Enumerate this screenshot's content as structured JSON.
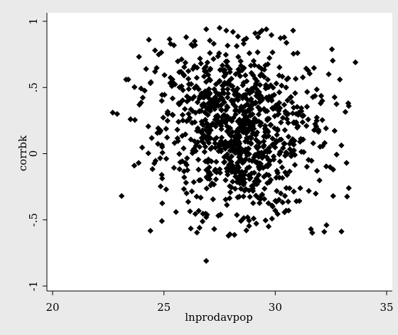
{
  "chart_data": {
    "type": "scatter",
    "title": "",
    "xlabel": "lnprodavpop",
    "ylabel": "corrbk",
    "xlim": [
      20,
      35
    ],
    "ylim": [
      -1,
      1
    ],
    "xticks": [
      "20",
      "25",
      "30",
      "35"
    ],
    "yticks": [
      "-1",
      "-.5",
      "0",
      ".5",
      "1"
    ],
    "xtick_values": [
      20,
      25,
      30,
      35
    ],
    "ytick_values": [
      -1,
      -0.5,
      0,
      0.5,
      1
    ],
    "grid": false,
    "marker": "diamond",
    "marker_color": "#000000",
    "series": [
      {
        "points": [
          [
            22.7,
            0.31
          ],
          [
            23.1,
            -0.32
          ],
          [
            23.3,
            0.56
          ],
          [
            23.4,
            0.56
          ],
          [
            23.5,
            0.26
          ],
          [
            23.9,
            0.37
          ],
          [
            24.2,
            0.64
          ],
          [
            24.6,
            0.62
          ],
          [
            24.6,
            0.78
          ],
          [
            24.9,
            -0.16
          ],
          [
            25.1,
            -0.27
          ],
          [
            25.3,
            0.83
          ],
          [
            26.0,
            0.88
          ],
          [
            26.4,
            0.82
          ],
          [
            26.9,
            0.94
          ],
          [
            27.5,
            0.95
          ],
          [
            27.8,
            0.93
          ],
          [
            28.1,
            0.92
          ],
          [
            28.7,
            0.87
          ],
          [
            29.1,
            0.91
          ],
          [
            29.4,
            0.93
          ],
          [
            29.6,
            0.94
          ],
          [
            30.8,
            0.93
          ],
          [
            31.0,
            0.76
          ],
          [
            32.4,
            0.6
          ],
          [
            32.9,
            0.56
          ],
          [
            33.6,
            0.69
          ],
          [
            33.3,
            0.36
          ],
          [
            33.2,
            -0.07
          ],
          [
            33.3,
            -0.26
          ],
          [
            32.3,
            -0.54
          ],
          [
            32.2,
            -0.59
          ],
          [
            31.6,
            -0.57
          ],
          [
            30.6,
            -0.43
          ],
          [
            30.0,
            -0.43
          ],
          [
            29.7,
            -0.55
          ],
          [
            28.7,
            -0.58
          ],
          [
            27.9,
            -0.62
          ],
          [
            26.9,
            -0.81
          ],
          [
            26.6,
            -0.56
          ],
          [
            26.9,
            -0.48
          ],
          [
            32.6,
            -0.32
          ],
          [
            32.6,
            -0.12
          ],
          [
            22.9,
            0.3
          ]
        ]
      }
    ]
  }
}
